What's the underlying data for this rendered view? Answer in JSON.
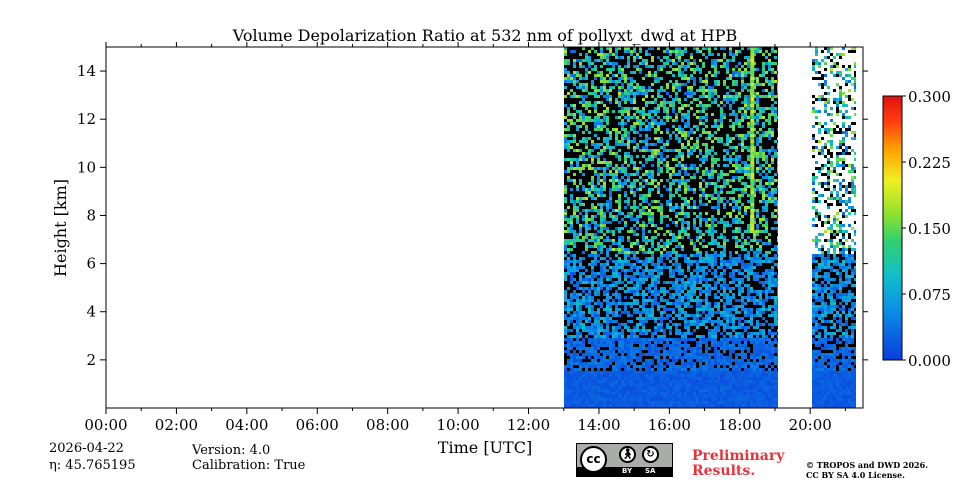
{
  "chart_data": {
    "type": "heatmap",
    "title": "Volume Depolarization Ratio at 532 nm of pollyxt_dwd at HPB",
    "xlabel": "Time [UTC]",
    "ylabel": "Height [km]",
    "xlim": [
      0,
      21.5
    ],
    "ylim": [
      0,
      15
    ],
    "x_ticks": [
      0,
      2,
      4,
      6,
      8,
      10,
      12,
      14,
      16,
      18,
      20
    ],
    "x_tick_labels": [
      "00:00",
      "02:00",
      "04:00",
      "06:00",
      "08:00",
      "10:00",
      "12:00",
      "14:00",
      "16:00",
      "18:00",
      "20:00"
    ],
    "y_ticks": [
      2,
      4,
      6,
      8,
      10,
      12,
      14
    ],
    "y_tick_labels": [
      "2",
      "4",
      "6",
      "8",
      "10",
      "12",
      "14"
    ],
    "colorbar": {
      "range": [
        0,
        0.3
      ],
      "ticks": [
        0,
        0.075,
        0.15,
        0.225,
        0.3
      ],
      "tick_labels": [
        "0.000",
        "0.075",
        "0.150",
        "0.225",
        "0.300"
      ],
      "colormap": "jet"
    },
    "data_segments": [
      {
        "start_hour": 13.0,
        "end_hour": 19.1
      },
      {
        "start_hour": 20.05,
        "end_hour": 21.3
      }
    ],
    "description": "Low depolarization (~0.0-0.05) below ~3 km; noisy values above with sparse signal; short high-depol streak near 18:20"
  },
  "meta": {
    "date": "2026-04-22",
    "eta_label": "η: 45.765195",
    "version": "Version: 4.0",
    "calibration": "Calibration: True",
    "preliminary_line1": "Preliminary",
    "preliminary_line2": "Results.",
    "copyright_line1": "© TROPOS and DWD 2026.",
    "copyright_line2": "CC BY SA 4.0 License."
  },
  "license_badge": {
    "cc": "cc",
    "by": "BY",
    "sa": "SA"
  }
}
